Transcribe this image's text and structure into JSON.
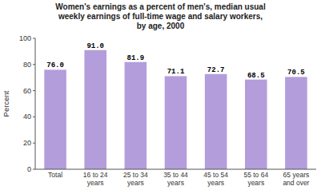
{
  "chart_data": {
    "type": "bar",
    "title": "Women's earnings as a percent of men's, median usual\nweekly earnings of full-time wage and salary workers,\nby age,  2000",
    "ylabel": "Percent",
    "categories": [
      "Total",
      "16 to 24\nyears",
      "25 to 34\nyears",
      "35 to 44\nyears",
      "45 to 54\nyears",
      "55 to 64\nyears",
      "65 years\nand over"
    ],
    "values": [
      76.0,
      91.0,
      81.9,
      71.1,
      72.7,
      68.5,
      70.5
    ],
    "value_labels": [
      "76.0",
      "91.0",
      "81.9",
      "71.1",
      "72.7",
      "68.5",
      "70.5"
    ],
    "data_labels": true,
    "color": "#b39ddb",
    "ylim": [
      0,
      100
    ],
    "yticks": [
      0,
      20,
      40,
      60,
      80,
      100
    ],
    "grid": false
  }
}
